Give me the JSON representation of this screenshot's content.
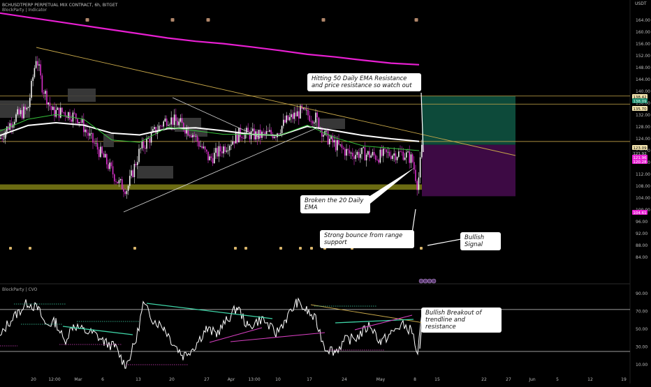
{
  "header": {
    "title": "BCHUSDTPERP PERPETUAL MIX CONTRACT, 6h, BITGET",
    "indicator": "BlockParty | Indicator",
    "currency": "USDT",
    "sub_indicator": "BlockParty | CVO"
  },
  "annotations": {
    "resistance_note": "Hitting 50 Daily EMA Resistance and price resistance so watch out",
    "ema_note": "Broken the 20 Daily EMA",
    "bounce_note": "Strong bounce from range support",
    "signal_note": "Bullish Signal",
    "breakout_note": "Bullish Breakout of trendline and resistance"
  },
  "price_labels": [
    {
      "value": "138.42",
      "bg": "#f5e6b0",
      "fg": "#000000"
    },
    {
      "value": "138.09",
      "bg": "#1e8a6e",
      "fg": "#d8fff0"
    },
    {
      "value": "135.70",
      "bg": "#f5e6b0",
      "fg": "#000000"
    },
    {
      "value": "123.09",
      "bg": "#f5e6b0",
      "fg": "#000000"
    },
    {
      "value": "121.92",
      "bg": "#101010",
      "fg": "#cfcfcf"
    },
    {
      "value": "121.96",
      "bg": "#e81fd2",
      "fg": "#ffffff"
    },
    {
      "value": "120.28",
      "bg": "#e81fd2",
      "fg": "#ffffff"
    },
    {
      "value": "104.61",
      "bg": "#e81fd2",
      "fg": "#ffffff"
    }
  ],
  "colors": {
    "ema50": "#e81fd2",
    "ema20": "#ffffff",
    "green_line": "#36c23b",
    "trendline": "#c9a94a",
    "support_zone": "#6b6b12",
    "tp_zone": "#0d4a3a",
    "sl_zone": "#3d0a44",
    "cvo": "#ffffff",
    "cvo_trend": "#3fd6a8",
    "cvo_support": "#d63fc0"
  },
  "chart_data": [
    {
      "type": "candlestick",
      "title": "BCHUSDTPERP PERPETUAL MIX CONTRACT, 6h, BITGET",
      "ylabel": "USDT",
      "ylim": [
        82,
        168
      ],
      "y_ticks": [
        84,
        88,
        92,
        96,
        100,
        104,
        108,
        112,
        116,
        120,
        124,
        128,
        132,
        136,
        140,
        144,
        148,
        152,
        156,
        160,
        164
      ],
      "x_ticks": [
        "20",
        "12:00",
        "Mar",
        "6",
        "13",
        "20",
        "27",
        "Apr",
        "13:00",
        "10",
        "17",
        "24",
        "May",
        "8",
        "15",
        "22",
        "27",
        "Jun",
        "5",
        "12",
        "19"
      ],
      "series": [
        {
          "name": "",
          "color": "#e81fd2",
          "x": [
            0,
            40,
            80,
            120,
            160,
            200,
            240,
            280,
            320,
            360,
            400,
            440,
            480,
            520,
            560,
            600
          ],
          "values": [
            166.4,
            165.0,
            163.6,
            162.2,
            160.8,
            159.4,
            158.0,
            156.9,
            156.1,
            155.0,
            153.8,
            152.5,
            151.6,
            150.5,
            149.5,
            149.0
          ]
        },
        {
          "name": "",
          "color": "#ffffff",
          "x": [
            0,
            40,
            80,
            120,
            160,
            200,
            240,
            280,
            320,
            360,
            400,
            440,
            480,
            520,
            560,
            600
          ],
          "values": [
            125.1,
            128.5,
            129.4,
            128.6,
            125.9,
            125.3,
            127.4,
            127.7,
            126.7,
            125.5,
            125.1,
            128.2,
            126.7,
            125.1,
            124.0,
            123.1
          ]
        },
        {
          "name": "",
          "color": "#36c23b",
          "x": [
            0,
            40,
            80,
            120,
            160,
            200,
            240,
            280,
            320,
            360,
            400,
            440,
            480,
            520,
            560,
            600
          ],
          "values": [
            126.6,
            130.6,
            132.2,
            130.6,
            123.6,
            122.8,
            127.9,
            126.7,
            125.5,
            125.5,
            125.1,
            128.6,
            124.3,
            121.6,
            120.8,
            120.0
          ]
        }
      ],
      "levels": [
        138.42,
        135.7,
        123.09
      ],
      "range_support": [
        106.8,
        108.6
      ],
      "position": {
        "entry": 121.96,
        "target": 138.42,
        "stop": 104.61
      }
    },
    {
      "type": "line",
      "title": "BlockParty | CVO",
      "ylim": [
        5,
        92
      ],
      "y_ticks": [
        10,
        30,
        50,
        70,
        90
      ],
      "levels": [
        25,
        72
      ]
    }
  ]
}
